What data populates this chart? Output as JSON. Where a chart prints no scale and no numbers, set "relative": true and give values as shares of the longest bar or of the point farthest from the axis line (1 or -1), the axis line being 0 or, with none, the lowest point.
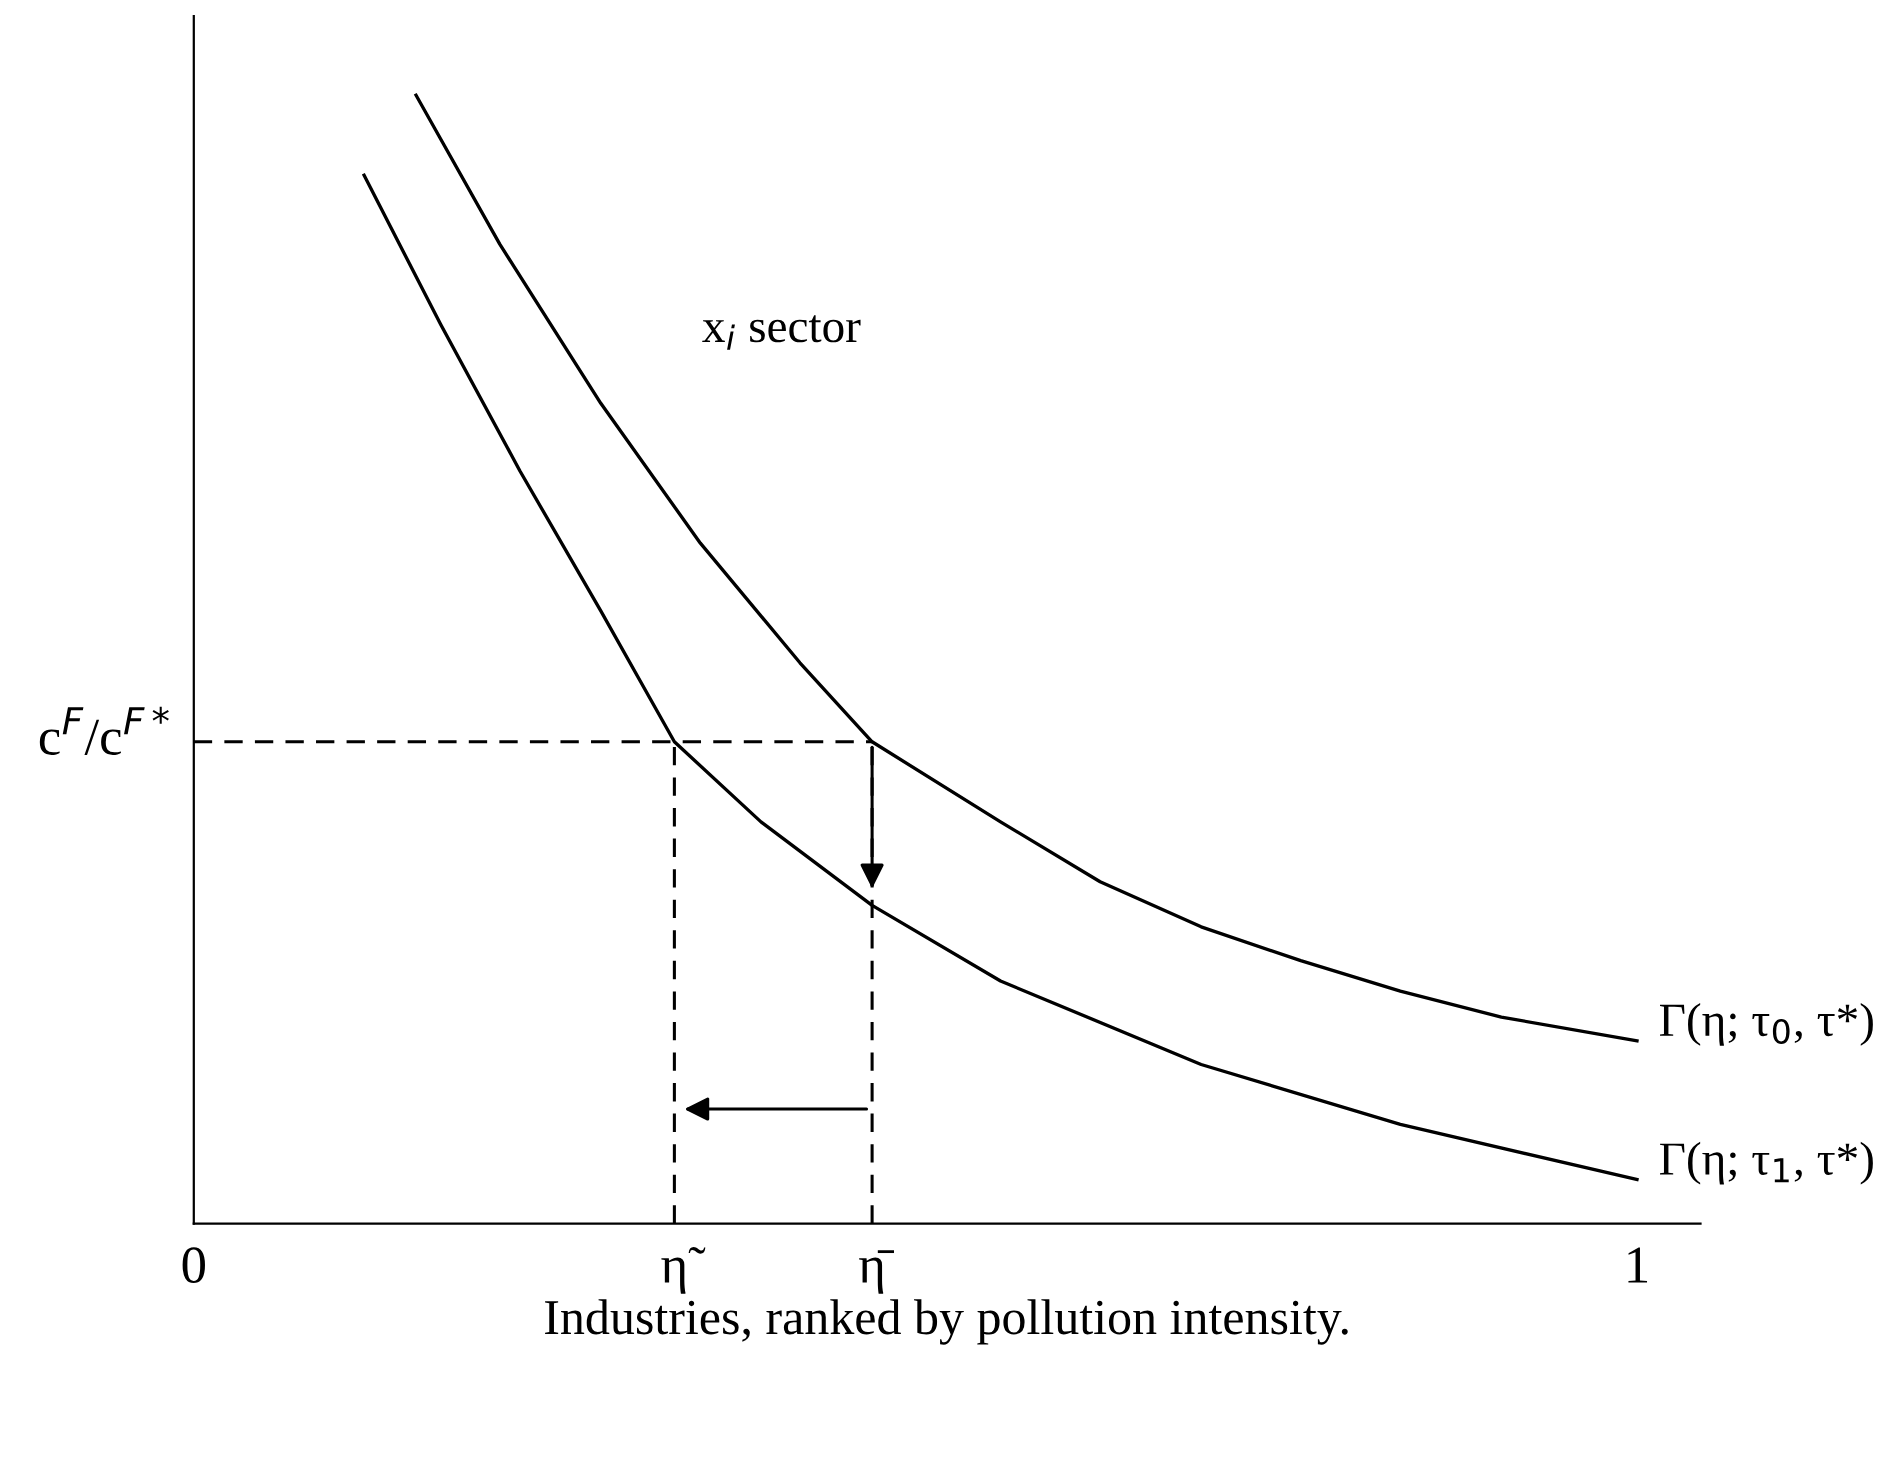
{
  "chart_data": {
    "type": "line",
    "relative": true,
    "xlabel": "Industries, ranked by pollution intensity.",
    "xlim": [
      0,
      1.044
    ],
    "xticks": [
      0,
      {
        "value": 0.333,
        "label": "η̃"
      },
      {
        "value": 0.47,
        "label": "η̄"
      },
      1
    ],
    "series": [
      {
        "name": "Γ(η; τ$_{0}$, τ*)",
        "color": "#000000",
        "x": [
          0.154,
          0.212,
          0.282,
          0.351,
          0.42,
          0.47,
          0.559,
          0.628,
          0.698,
          0.767,
          0.836,
          0.906,
          1.0
        ],
        "values": [
          1.0,
          0.868,
          0.727,
          0.603,
          0.497,
          0.427,
          0.356,
          0.303,
          0.263,
          0.233,
          0.206,
          0.183,
          0.162
        ]
      },
      {
        "name": "Γ(η; τ$_{1}$, τ*)",
        "color": "#000000",
        "x": [
          0.118,
          0.171,
          0.226,
          0.282,
          0.333,
          0.393,
          0.47,
          0.559,
          0.698,
          0.836,
          1.0
        ],
        "values": [
          0.929,
          0.797,
          0.667,
          0.543,
          0.427,
          0.356,
          0.282,
          0.215,
          0.141,
          0.088,
          0.039
        ]
      }
    ],
    "ref_lines": [
      {
        "axis": "y",
        "value": 0.427,
        "label": "c$^{F}$/c$^{F*}$",
        "line_style": "dashed",
        "color": "#000000"
      },
      {
        "axis": "x",
        "value": 0.333,
        "line_style": "dashed",
        "color": "#000000"
      },
      {
        "axis": "x",
        "value": 0.47,
        "line_style": "dashed",
        "color": "#000000"
      }
    ],
    "annotations": [
      "x$_{i}$ sector"
    ],
    "grid": false,
    "legend": false,
    "marker": "none",
    "line_style": "solid"
  }
}
